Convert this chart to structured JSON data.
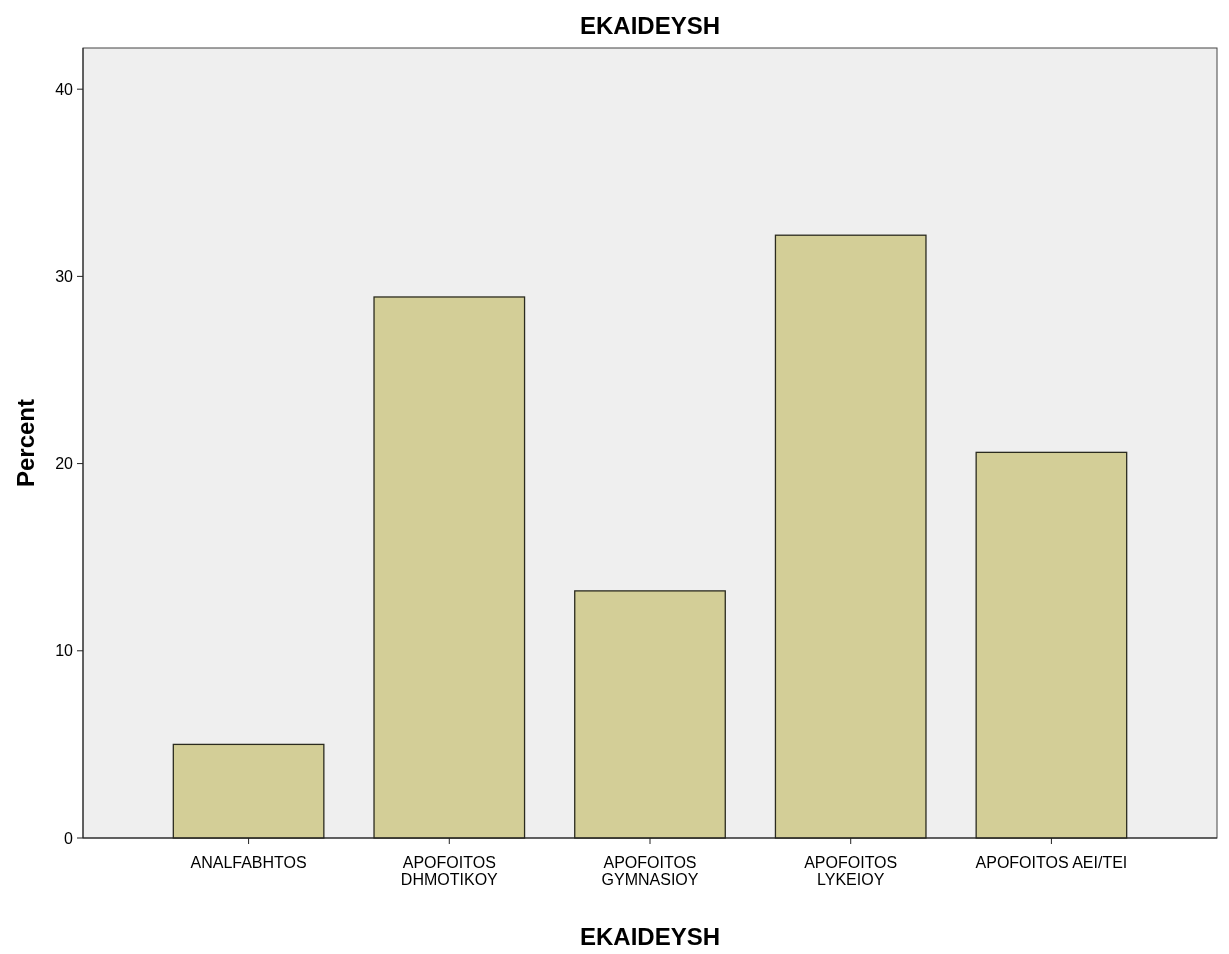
{
  "chart_data": {
    "type": "bar",
    "title": "EKAIDEYSH",
    "xlabel": "EKAIDEYSH",
    "ylabel": "Percent",
    "categories": [
      "ANALFABHTOS",
      "APOFOITOS\nDHMOTIKOY",
      "APOFOITOS\nGYMNASIOY",
      "APOFOITOS\nLYKEIOY",
      "APOFOITOS AEI/TEI"
    ],
    "values": [
      5.0,
      28.9,
      13.2,
      32.2,
      20.6
    ],
    "color": "#d3ce97",
    "ylim": [
      0,
      42.2
    ],
    "yticks": [
      0,
      10,
      20,
      30,
      40
    ],
    "grid": false
  }
}
